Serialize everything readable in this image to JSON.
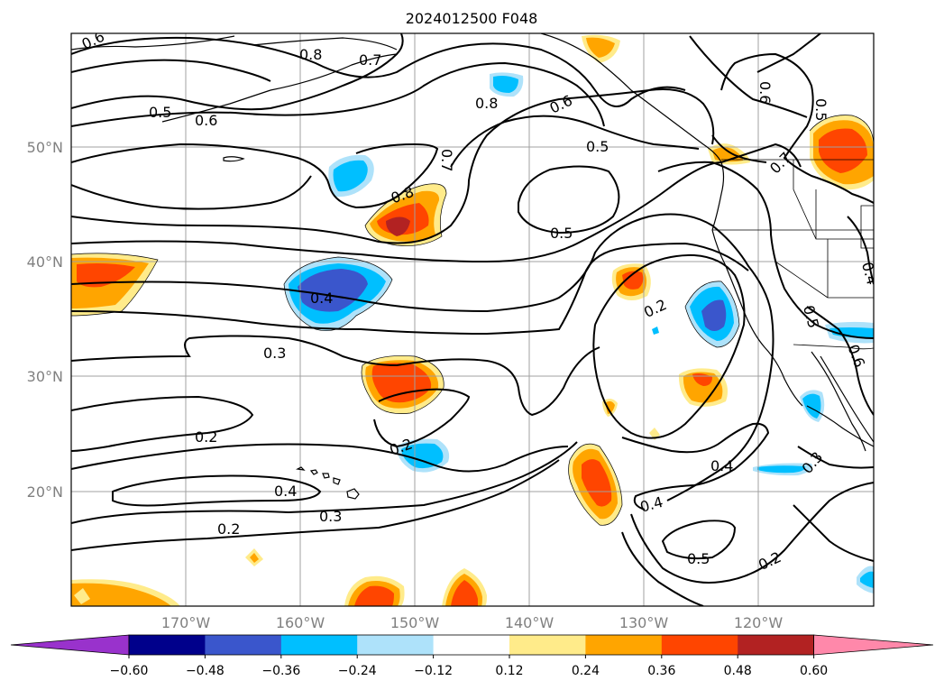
{
  "title": "2024012500 F048",
  "lat_labels": [
    "50°N",
    "40°N",
    "30°N",
    "20°N"
  ],
  "lon_labels": [
    "170°W",
    "160°W",
    "150°W",
    "140°W",
    "130°W",
    "120°W"
  ],
  "colorbar": {
    "ticks": [
      "−0.60",
      "−0.48",
      "−0.36",
      "−0.24",
      "−0.12",
      "0.12",
      "0.24",
      "0.36",
      "0.48",
      "0.60"
    ],
    "colors": [
      "#9932cc",
      "#00008b",
      "#3a56cc",
      "#00bfff",
      "#aee2fa",
      "#ffffff",
      "#ffeb8a",
      "#ffa500",
      "#ff4500",
      "#b22222",
      "#ff88aa"
    ]
  },
  "contour_labels": [
    "0.6",
    "0.8",
    "0.7",
    "0.5",
    "0.6",
    "0.8",
    "0.6",
    "0.5",
    "0.6",
    "0.5",
    "0.7",
    "0.8",
    "0.7",
    "0.5",
    "0.4",
    "0.2",
    "0.3",
    "0.4",
    "0.5",
    "0.6",
    "0.2",
    "0.2",
    "0.4",
    "0.3",
    "0.3",
    "0.4",
    "0.4",
    "0.2",
    "0.5",
    "0.2"
  ],
  "map": {
    "projection": "lat-lon",
    "extent_lon": [
      "-180",
      "-110"
    ],
    "extent_lat": [
      "10",
      "60"
    ],
    "grid": true
  }
}
